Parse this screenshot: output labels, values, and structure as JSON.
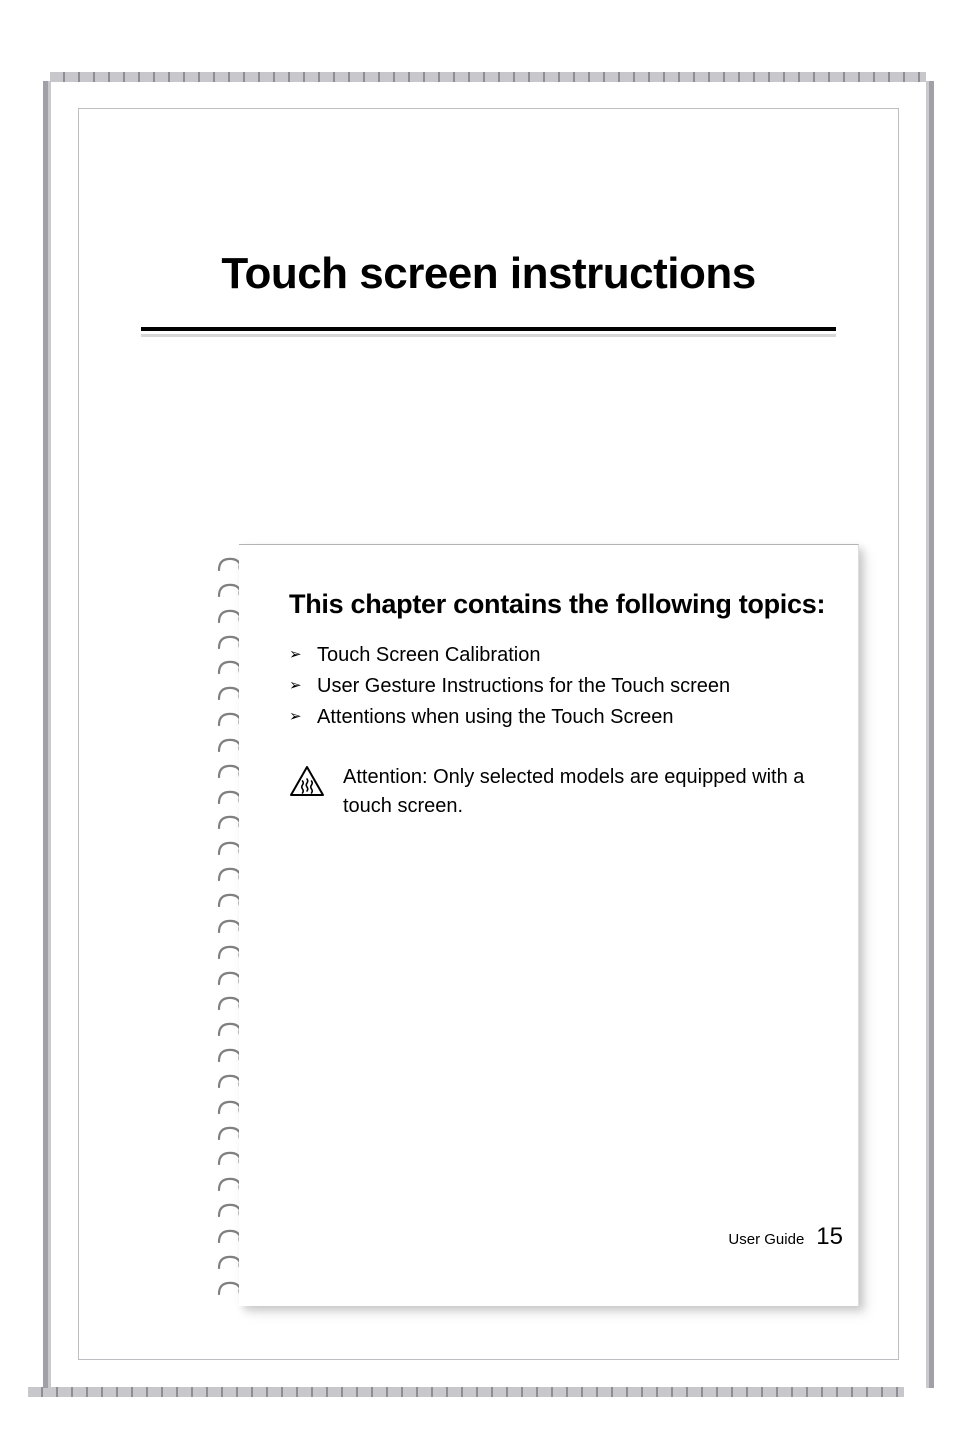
{
  "page": {
    "title": "Touch screen instructions",
    "card_heading": "This chapter contains the following topics:",
    "topics": [
      "Touch Screen Calibration",
      "User Gesture Instructions for the Touch screen",
      "Attentions when using the Touch Screen"
    ],
    "attention_label": "Attention:",
    "attention_body": " Only selected models are equipped with a touch screen.",
    "footer_label": "User Guide",
    "footer_page": "15"
  },
  "style": {
    "colors": {
      "text": "#000000",
      "frame_light": "#c9c9ce",
      "frame_dark": "#a0a0a6",
      "hatch_light": "#c7c7cc",
      "hatch_dark": "#8e8e93",
      "spiral": "#808080",
      "shadow": "rgba(0,0,0,0.18)"
    },
    "fonts": {
      "title_size_pt": 33,
      "heading_size_pt": 20,
      "body_size_pt": 15,
      "footer_num_size_pt": 18
    },
    "spiral_count": 29,
    "icon": {
      "name": "attention-heat-icon",
      "stroke": "#000000",
      "stroke_width": 2,
      "fill": "none"
    }
  }
}
